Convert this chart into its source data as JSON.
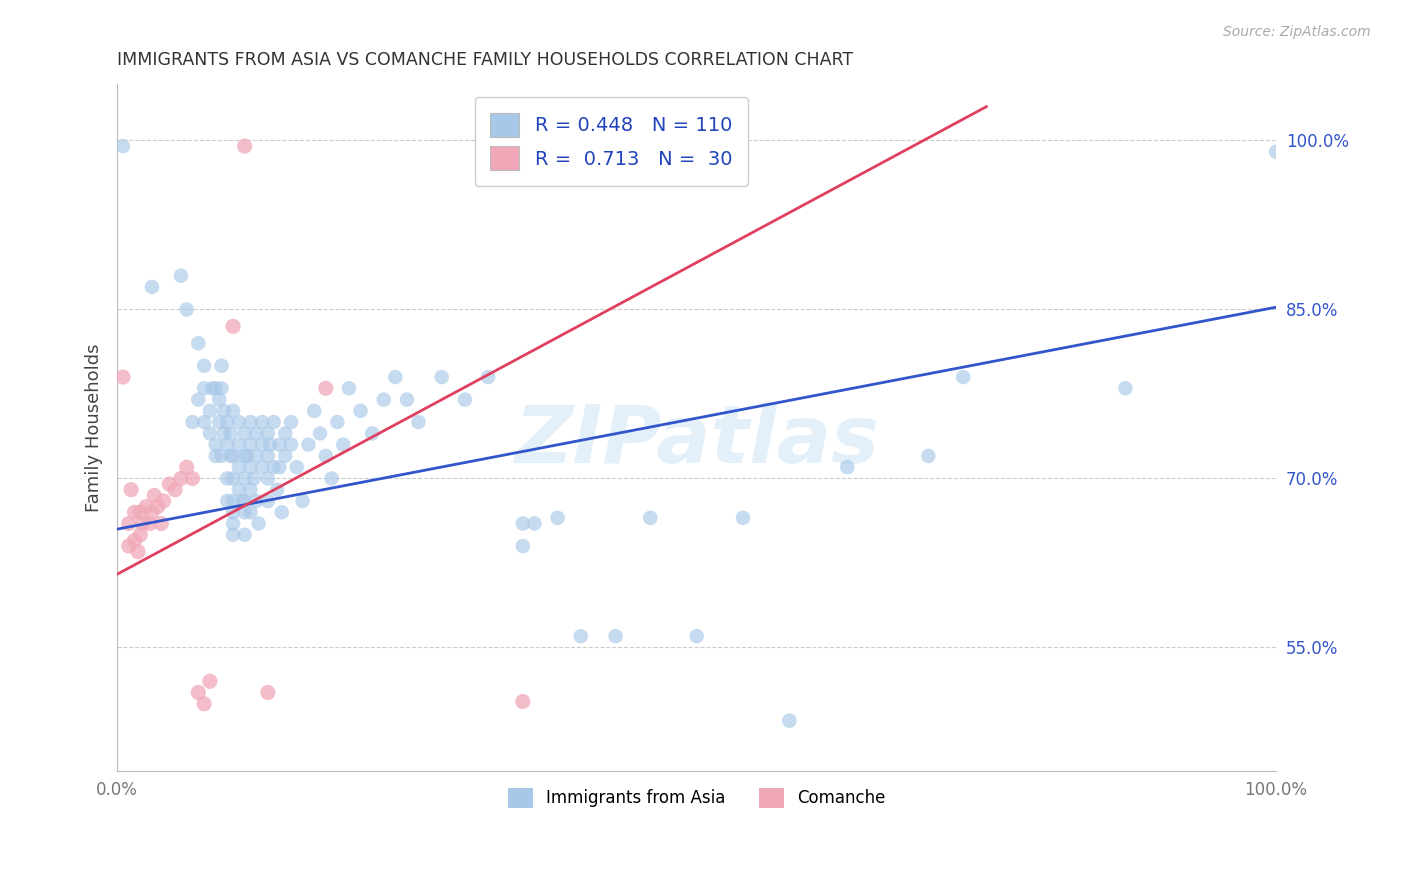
{
  "title": "IMMIGRANTS FROM ASIA VS COMANCHE FAMILY HOUSEHOLDS CORRELATION CHART",
  "source": "Source: ZipAtlas.com",
  "ylabel": "Family Households",
  "xlim": [
    0.0,
    1.0
  ],
  "ylim": [
    0.44,
    1.05
  ],
  "xtick_labels": [
    "0.0%",
    "100.0%"
  ],
  "ytick_positions": [
    0.55,
    0.7,
    0.85,
    1.0
  ],
  "ytick_labels": [
    "55.0%",
    "70.0%",
    "85.0%",
    "100.0%"
  ],
  "watermark": "ZIPatlas",
  "blue_color": "#A8C8E8",
  "pink_color": "#F0A8B8",
  "blue_line_color": "#3355CC",
  "pink_line_color": "#E04060",
  "legend_blue_label": "R = 0.448   N = 110",
  "legend_pink_label": "R =  0.713   N =  30",
  "legend_label_blue": "Immigrants from Asia",
  "legend_label_pink": "Comanche",
  "background_color": "#ffffff",
  "grid_color": "#cccccc",
  "blue_line_x0": 0.0,
  "blue_line_y0": 0.655,
  "blue_line_x1": 1.0,
  "blue_line_y1": 0.852,
  "pink_line_x0": 0.0,
  "pink_line_y0": 0.615,
  "pink_line_x1": 0.75,
  "pink_line_y1": 1.03,
  "blue_scatter": [
    [
      0.005,
      0.995
    ],
    [
      0.03,
      0.87
    ],
    [
      0.055,
      0.88
    ],
    [
      0.06,
      0.85
    ],
    [
      0.065,
      0.75
    ],
    [
      0.07,
      0.82
    ],
    [
      0.07,
      0.77
    ],
    [
      0.075,
      0.78
    ],
    [
      0.075,
      0.8
    ],
    [
      0.075,
      0.75
    ],
    [
      0.08,
      0.76
    ],
    [
      0.08,
      0.74
    ],
    [
      0.082,
      0.78
    ],
    [
      0.085,
      0.72
    ],
    [
      0.085,
      0.78
    ],
    [
      0.085,
      0.73
    ],
    [
      0.088,
      0.77
    ],
    [
      0.088,
      0.75
    ],
    [
      0.09,
      0.8
    ],
    [
      0.09,
      0.78
    ],
    [
      0.09,
      0.72
    ],
    [
      0.092,
      0.74
    ],
    [
      0.092,
      0.76
    ],
    [
      0.095,
      0.73
    ],
    [
      0.095,
      0.75
    ],
    [
      0.095,
      0.68
    ],
    [
      0.095,
      0.7
    ],
    [
      0.098,
      0.72
    ],
    [
      0.098,
      0.74
    ],
    [
      0.1,
      0.76
    ],
    [
      0.1,
      0.7
    ],
    [
      0.1,
      0.68
    ],
    [
      0.1,
      0.72
    ],
    [
      0.1,
      0.66
    ],
    [
      0.1,
      0.65
    ],
    [
      0.1,
      0.67
    ],
    [
      0.105,
      0.73
    ],
    [
      0.105,
      0.69
    ],
    [
      0.105,
      0.71
    ],
    [
      0.105,
      0.75
    ],
    [
      0.108,
      0.68
    ],
    [
      0.11,
      0.74
    ],
    [
      0.11,
      0.72
    ],
    [
      0.11,
      0.7
    ],
    [
      0.11,
      0.68
    ],
    [
      0.11,
      0.65
    ],
    [
      0.11,
      0.67
    ],
    [
      0.112,
      0.72
    ],
    [
      0.115,
      0.75
    ],
    [
      0.115,
      0.73
    ],
    [
      0.115,
      0.71
    ],
    [
      0.115,
      0.69
    ],
    [
      0.115,
      0.67
    ],
    [
      0.118,
      0.7
    ],
    [
      0.12,
      0.72
    ],
    [
      0.12,
      0.74
    ],
    [
      0.12,
      0.68
    ],
    [
      0.122,
      0.66
    ],
    [
      0.125,
      0.75
    ],
    [
      0.125,
      0.73
    ],
    [
      0.125,
      0.71
    ],
    [
      0.13,
      0.74
    ],
    [
      0.13,
      0.72
    ],
    [
      0.13,
      0.7
    ],
    [
      0.13,
      0.68
    ],
    [
      0.132,
      0.73
    ],
    [
      0.135,
      0.75
    ],
    [
      0.135,
      0.71
    ],
    [
      0.138,
      0.69
    ],
    [
      0.14,
      0.73
    ],
    [
      0.14,
      0.71
    ],
    [
      0.142,
      0.67
    ],
    [
      0.145,
      0.74
    ],
    [
      0.145,
      0.72
    ],
    [
      0.15,
      0.75
    ],
    [
      0.15,
      0.73
    ],
    [
      0.155,
      0.71
    ],
    [
      0.16,
      0.68
    ],
    [
      0.165,
      0.73
    ],
    [
      0.17,
      0.76
    ],
    [
      0.175,
      0.74
    ],
    [
      0.18,
      0.72
    ],
    [
      0.185,
      0.7
    ],
    [
      0.19,
      0.75
    ],
    [
      0.195,
      0.73
    ],
    [
      0.2,
      0.78
    ],
    [
      0.21,
      0.76
    ],
    [
      0.22,
      0.74
    ],
    [
      0.23,
      0.77
    ],
    [
      0.24,
      0.79
    ],
    [
      0.25,
      0.77
    ],
    [
      0.26,
      0.75
    ],
    [
      0.28,
      0.79
    ],
    [
      0.3,
      0.77
    ],
    [
      0.32,
      0.79
    ],
    [
      0.35,
      0.66
    ],
    [
      0.35,
      0.64
    ],
    [
      0.36,
      0.66
    ],
    [
      0.38,
      0.665
    ],
    [
      0.4,
      0.56
    ],
    [
      0.43,
      0.56
    ],
    [
      0.46,
      0.665
    ],
    [
      0.5,
      0.56
    ],
    [
      0.54,
      0.665
    ],
    [
      0.58,
      0.485
    ],
    [
      0.63,
      0.71
    ],
    [
      0.7,
      0.72
    ],
    [
      0.73,
      0.79
    ],
    [
      0.87,
      0.78
    ],
    [
      1.0,
      0.99
    ]
  ],
  "pink_scatter": [
    [
      0.005,
      0.79
    ],
    [
      0.01,
      0.66
    ],
    [
      0.01,
      0.64
    ],
    [
      0.012,
      0.69
    ],
    [
      0.015,
      0.67
    ],
    [
      0.015,
      0.645
    ],
    [
      0.018,
      0.635
    ],
    [
      0.02,
      0.67
    ],
    [
      0.02,
      0.65
    ],
    [
      0.022,
      0.66
    ],
    [
      0.025,
      0.675
    ],
    [
      0.028,
      0.66
    ],
    [
      0.03,
      0.67
    ],
    [
      0.032,
      0.685
    ],
    [
      0.035,
      0.675
    ],
    [
      0.038,
      0.66
    ],
    [
      0.04,
      0.68
    ],
    [
      0.045,
      0.695
    ],
    [
      0.05,
      0.69
    ],
    [
      0.055,
      0.7
    ],
    [
      0.06,
      0.71
    ],
    [
      0.065,
      0.7
    ],
    [
      0.07,
      0.51
    ],
    [
      0.075,
      0.5
    ],
    [
      0.08,
      0.52
    ],
    [
      0.1,
      0.835
    ],
    [
      0.11,
      0.995
    ],
    [
      0.13,
      0.51
    ],
    [
      0.18,
      0.78
    ],
    [
      0.35,
      0.502
    ]
  ]
}
